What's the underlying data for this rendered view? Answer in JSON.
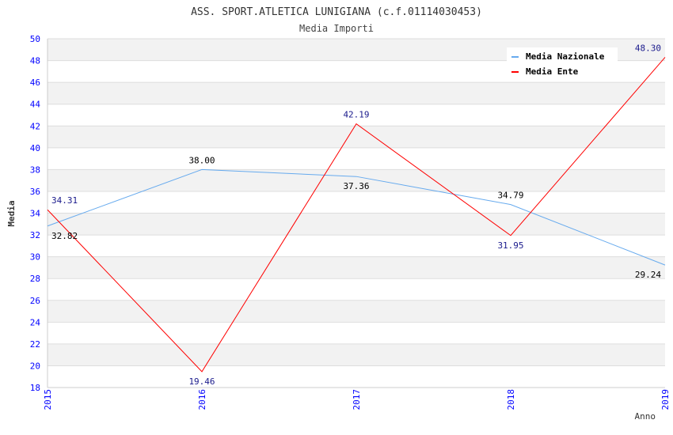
{
  "chart_data": {
    "type": "line",
    "title": "ASS. SPORT.ATLETICA LUNIGIANA (c.f.01114030453)",
    "subtitle": "Media Importi",
    "xlabel": "Anno",
    "ylabel": "Media",
    "x": [
      "2015",
      "2016",
      "2017",
      "2018",
      "2019"
    ],
    "ylim": [
      18,
      50
    ],
    "ytick_step": 2,
    "grid": true,
    "legend_placement": "top-right",
    "series": [
      {
        "name": "Media Nazionale",
        "color": "#66aaee",
        "label_color": "#000000",
        "values": [
          32.82,
          38.0,
          37.36,
          34.79,
          29.24
        ],
        "labels": [
          "32.82",
          "38.00",
          "37.36",
          "34.79",
          "29.24"
        ]
      },
      {
        "name": "Media Ente",
        "color": "#ff0000",
        "label_color": "#1a1a8c",
        "values": [
          34.31,
          19.46,
          42.19,
          31.95,
          48.3
        ],
        "labels": [
          "34.31",
          "19.46",
          "42.19",
          "31.95",
          "48.30"
        ]
      }
    ]
  }
}
